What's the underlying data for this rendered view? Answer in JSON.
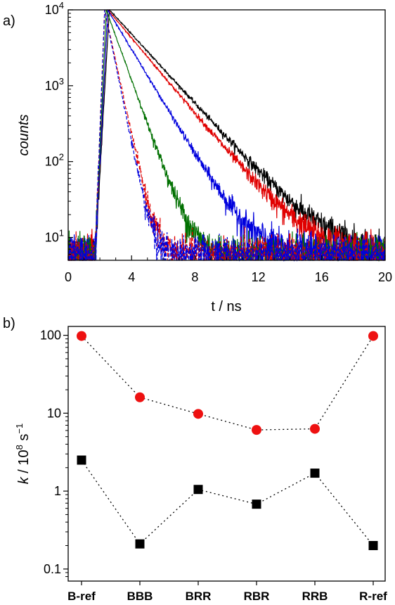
{
  "chart_data": [
    {
      "panel_label": "a)",
      "type": "line",
      "xlabel": "t / ns",
      "ylabel": "counts",
      "x_ticks": [
        "0",
        "4",
        "8",
        "12",
        "16",
        "20"
      ],
      "xlim": [
        0,
        20
      ],
      "ylim": [
        5,
        10000
      ],
      "yscale": "log",
      "y_ticks": [
        {
          "base": "10",
          "exp": "1",
          "value": 10
        },
        {
          "base": "10",
          "exp": "2",
          "value": 100
        },
        {
          "base": "10",
          "exp": "3",
          "value": 1000
        },
        {
          "base": "10",
          "exp": "4",
          "value": 10000
        }
      ],
      "series": [
        {
          "color": "#000000",
          "dash": "solid",
          "peak_x": 2.6,
          "peak": 10000,
          "decay_ns": 1.9
        },
        {
          "color": "#e00000",
          "dash": "solid",
          "peak_x": 2.5,
          "peak": 10000,
          "decay_ns": 1.75
        },
        {
          "color": "#0000dd",
          "dash": "solid",
          "peak_x": 2.5,
          "peak": 10000,
          "decay_ns": 1.25
        },
        {
          "color": "#007000",
          "dash": "solid",
          "peak_x": 2.4,
          "peak": 10000,
          "decay_ns": 0.75
        },
        {
          "color": "#e00000",
          "dash": "dashed",
          "peak_x": 2.3,
          "peak": 10000,
          "decay_ns": 0.45
        },
        {
          "color": "#0000dd",
          "dash": "dashed",
          "peak_x": 2.3,
          "peak": 10000,
          "decay_ns": 0.42
        }
      ]
    },
    {
      "panel_label": "b)",
      "type": "scatter",
      "ylabel_italic": "k",
      "ylabel_rest": " / 10",
      "ylabel_exp": "8",
      "ylabel_unit": " s",
      "ylabel_unit_exp": "−1",
      "yscale": "log",
      "ylim": [
        0.07,
        130
      ],
      "y_ticks": [
        "0.1",
        "1",
        "10",
        "100"
      ],
      "y_tick_values": [
        0.1,
        1,
        10,
        100
      ],
      "categories": [
        "B-ref",
        "BBB",
        "BRR",
        "RBR",
        "RRB",
        "R-ref"
      ],
      "series": [
        {
          "marker": "circle",
          "color": "#ee1111",
          "values": [
            98,
            16,
            9.8,
            6.1,
            6.3,
            98
          ]
        },
        {
          "marker": "square",
          "color": "#000000",
          "values": [
            2.5,
            0.21,
            1.05,
            0.68,
            1.7,
            0.2
          ]
        }
      ]
    }
  ]
}
